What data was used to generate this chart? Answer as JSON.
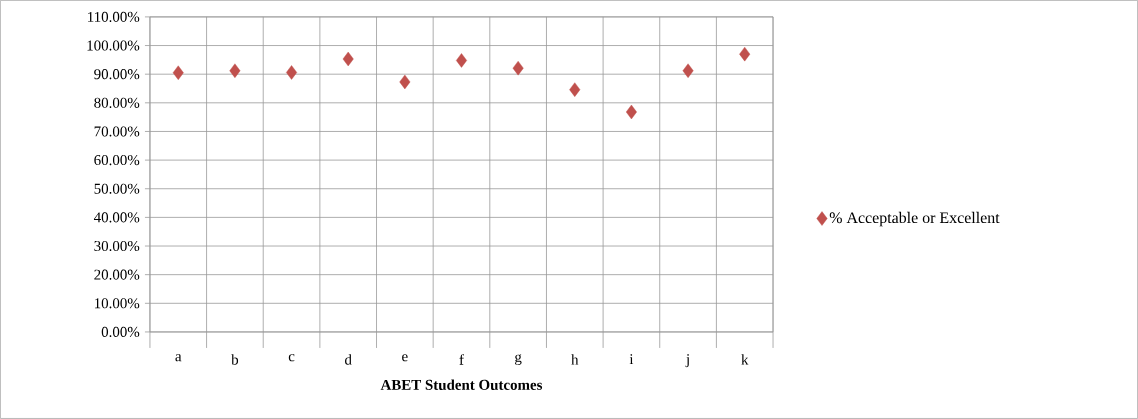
{
  "chart_data": {
    "type": "scatter",
    "xlabel": "ABET Student Outcomes",
    "categories": [
      "a",
      "b",
      "c",
      "d",
      "e",
      "f",
      "g",
      "h",
      "i",
      "j",
      "k"
    ],
    "series": [
      {
        "name": "% Acceptable or Excellent",
        "color": "#c0504d",
        "values": [
          90.5,
          91.2,
          90.6,
          95.3,
          87.3,
          94.8,
          92.1,
          84.6,
          76.8,
          91.2,
          97.0
        ]
      }
    ],
    "ylim": [
      0,
      110
    ],
    "yticks": [
      {
        "value": 0,
        "label": "0.00%"
      },
      {
        "value": 10,
        "label": "10.00%"
      },
      {
        "value": 20,
        "label": "20.00%"
      },
      {
        "value": 30,
        "label": "30.00%"
      },
      {
        "value": 40,
        "label": "40.00%"
      },
      {
        "value": 50,
        "label": "50.00%"
      },
      {
        "value": 60,
        "label": "60.00%"
      },
      {
        "value": 70,
        "label": "70.00%"
      },
      {
        "value": 80,
        "label": "80.00%"
      },
      {
        "value": 90,
        "label": "90.00%"
      },
      {
        "value": 100,
        "label": "100.00%"
      },
      {
        "value": 110,
        "label": "110.00%"
      }
    ],
    "grid": true,
    "legend": "right",
    "marker": "diamond"
  }
}
